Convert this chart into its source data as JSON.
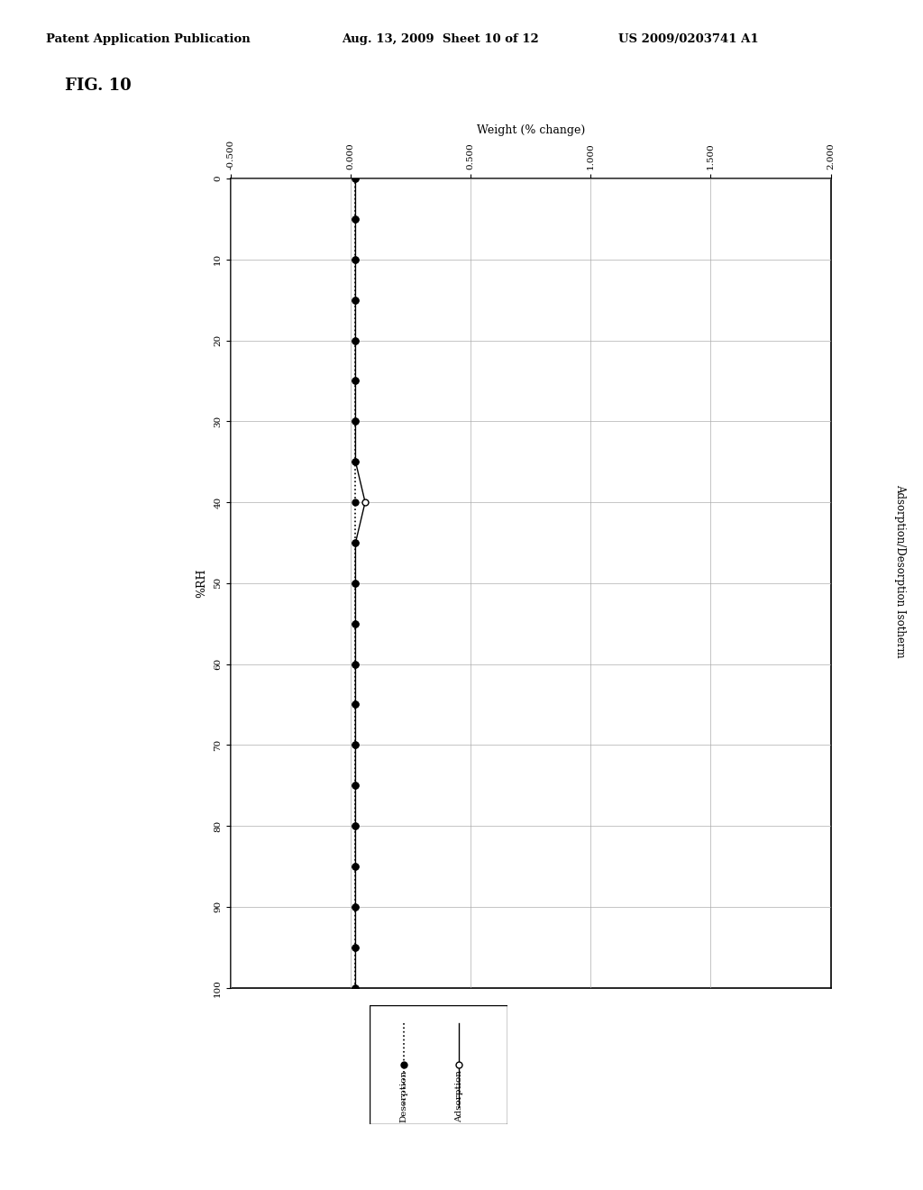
{
  "title_header": "Patent Application Publication",
  "title_date": "Aug. 13, 2009  Sheet 10 of 12",
  "title_patent": "US 2009/0203741 A1",
  "fig_label": "FIG. 10",
  "right_label": "Adsorption/Desorption Isotherm",
  "x_label": "Weight (% change)",
  "y_label": "%RH",
  "xlim": [
    -0.5,
    2.0
  ],
  "xticks": [
    -0.5,
    0.0,
    0.5,
    1.0,
    1.5,
    2.0
  ],
  "xtick_labels": [
    "-0.500",
    "0.000",
    "0.500",
    "1.000",
    "1.500",
    "2.000"
  ],
  "ylim": [
    0,
    100
  ],
  "yticks": [
    0,
    10,
    20,
    30,
    40,
    50,
    60,
    70,
    80,
    90,
    100
  ],
  "ytick_labels": [
    "0",
    "10",
    "20",
    "30",
    "40",
    "50",
    "60",
    "70",
    "80",
    "90",
    "100"
  ],
  "adsorption_rh": [
    0,
    5,
    10,
    15,
    20,
    25,
    30,
    35,
    40,
    45,
    50,
    55,
    60,
    65,
    70,
    75,
    80,
    85,
    90,
    95,
    100
  ],
  "adsorption_weight": [
    0.02,
    0.02,
    0.02,
    0.02,
    0.02,
    0.02,
    0.02,
    0.02,
    0.06,
    0.02,
    0.02,
    0.02,
    0.02,
    0.02,
    0.02,
    0.02,
    0.02,
    0.02,
    0.02,
    0.02,
    0.02
  ],
  "desorption_rh": [
    100,
    95,
    90,
    85,
    80,
    75,
    70,
    65,
    60,
    55,
    50,
    45,
    40,
    35,
    30,
    25,
    20,
    15,
    10,
    5,
    0
  ],
  "desorption_weight": [
    0.02,
    0.02,
    0.02,
    0.02,
    0.02,
    0.02,
    0.02,
    0.02,
    0.02,
    0.02,
    0.02,
    0.02,
    0.02,
    0.02,
    0.02,
    0.02,
    0.02,
    0.02,
    0.02,
    0.02,
    0.02
  ],
  "background_color": "#ffffff",
  "grid_color": "#aaaaaa",
  "legend_adsorption_label": "Adsorption",
  "legend_desorption_label": "Desorption"
}
